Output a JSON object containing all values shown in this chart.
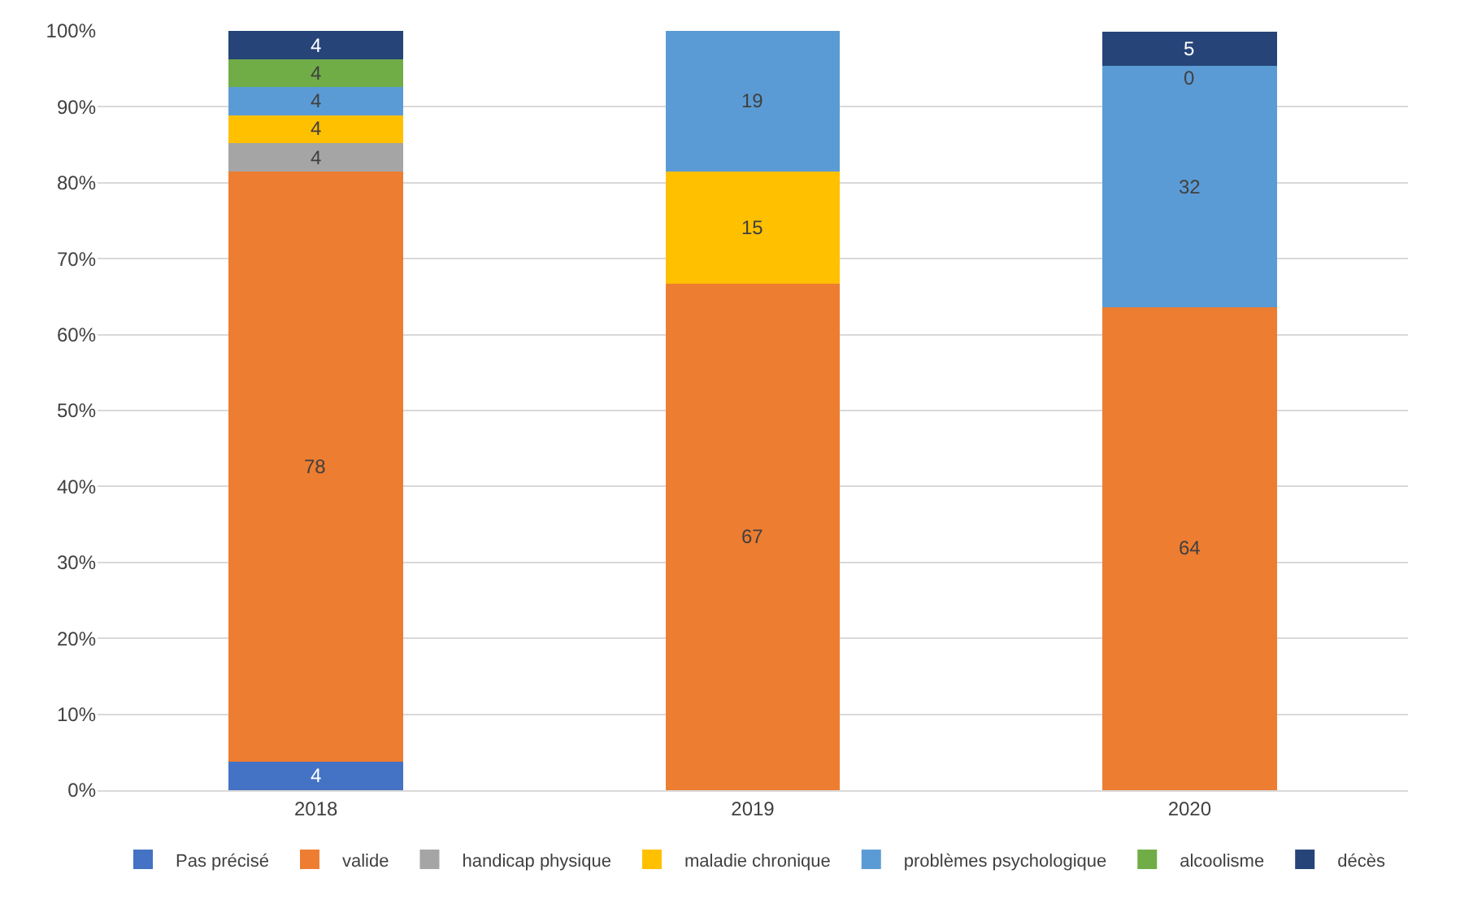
{
  "chart_data": {
    "type": "bar",
    "stacked": true,
    "categories": [
      "2018",
      "2019",
      "2020"
    ],
    "series": [
      {
        "name": "Pas précisé",
        "color": "#4472c4",
        "values": [
          3.7,
          0,
          0
        ],
        "value_labels": [
          "4",
          null,
          null
        ]
      },
      {
        "name": "valide",
        "color": "#ed7d31",
        "values": [
          77.8,
          66.7,
          63.6
        ],
        "value_labels": [
          "78",
          "67",
          "64"
        ]
      },
      {
        "name": "handicap physique",
        "color": "#a5a5a5",
        "values": [
          3.7,
          0,
          0
        ],
        "value_labels": [
          "4",
          null,
          null
        ]
      },
      {
        "name": "maladie chronique",
        "color": "#ffc000",
        "values": [
          3.7,
          14.8,
          0
        ],
        "value_labels": [
          "4",
          "15",
          null
        ]
      },
      {
        "name": "problèmes psychologique",
        "color": "#5b9bd5",
        "values": [
          3.7,
          18.5,
          31.8
        ],
        "value_labels": [
          "4",
          "19",
          "32"
        ]
      },
      {
        "name": "alcoolisme",
        "color": "#70ad47",
        "values": [
          3.7,
          0,
          0
        ],
        "value_labels": [
          "4",
          null,
          "0"
        ]
      },
      {
        "name": "décès",
        "color": "#264478",
        "values": [
          3.7,
          0,
          4.5
        ],
        "value_labels": [
          "4",
          null,
          "5"
        ]
      }
    ],
    "ylim": [
      0,
      100
    ],
    "yticks": [
      {
        "value": 0,
        "label": "0%"
      },
      {
        "value": 10,
        "label": "10%"
      },
      {
        "value": 20,
        "label": "20%"
      },
      {
        "value": 30,
        "label": "30%"
      },
      {
        "value": 40,
        "label": "40%"
      },
      {
        "value": 50,
        "label": "50%"
      },
      {
        "value": 60,
        "label": "60%"
      },
      {
        "value": 70,
        "label": "70%"
      },
      {
        "value": 80,
        "label": "80%"
      },
      {
        "value": 90,
        "label": "90%"
      },
      {
        "value": 100,
        "label": "100%"
      }
    ],
    "grid": "y",
    "legend": "bottom"
  }
}
